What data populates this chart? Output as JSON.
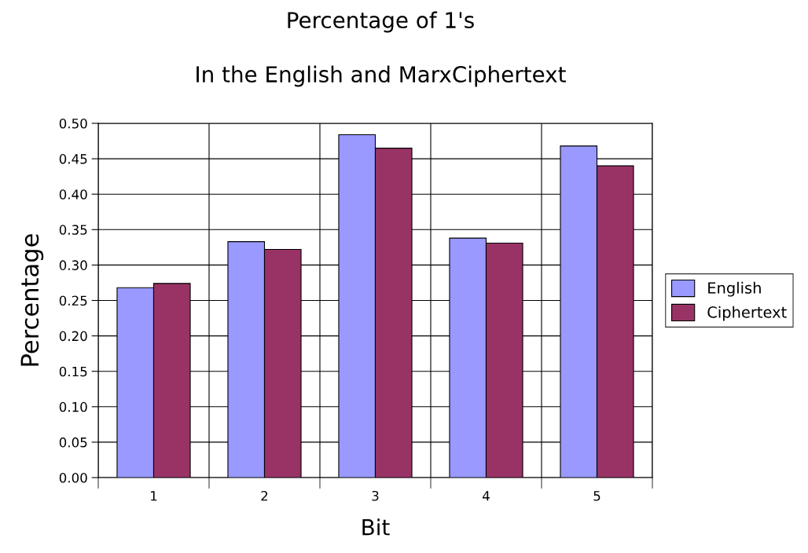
{
  "chart_data": {
    "type": "bar",
    "title": "Percentage of 1's",
    "subtitle": "In the English and MarxCiphertext",
    "xlabel": "Bit",
    "ylabel": "Percentage",
    "categories": [
      "1",
      "2",
      "3",
      "4",
      "5"
    ],
    "series": [
      {
        "name": "English",
        "color": "#9999ff",
        "values": [
          0.268,
          0.333,
          0.484,
          0.338,
          0.468
        ]
      },
      {
        "name": "Ciphertext",
        "color": "#993366",
        "values": [
          0.274,
          0.322,
          0.465,
          0.331,
          0.44
        ]
      }
    ],
    "ylim": [
      0,
      0.5
    ],
    "yticks": [
      {
        "value": 0,
        "label": "0.00"
      },
      {
        "value": 0.05,
        "label": "0.05"
      },
      {
        "value": 0.1,
        "label": "0.10"
      },
      {
        "value": 0.15,
        "label": "0.15"
      },
      {
        "value": 0.2,
        "label": "0.20"
      },
      {
        "value": 0.25,
        "label": "0.25"
      },
      {
        "value": 0.3,
        "label": "0.30"
      },
      {
        "value": 0.35,
        "label": "0.35"
      },
      {
        "value": 0.4,
        "label": "0.40"
      },
      {
        "value": 0.45,
        "label": "0.45"
      },
      {
        "value": 0.5,
        "label": "0.50"
      }
    ],
    "grid": true,
    "legend": "right"
  }
}
